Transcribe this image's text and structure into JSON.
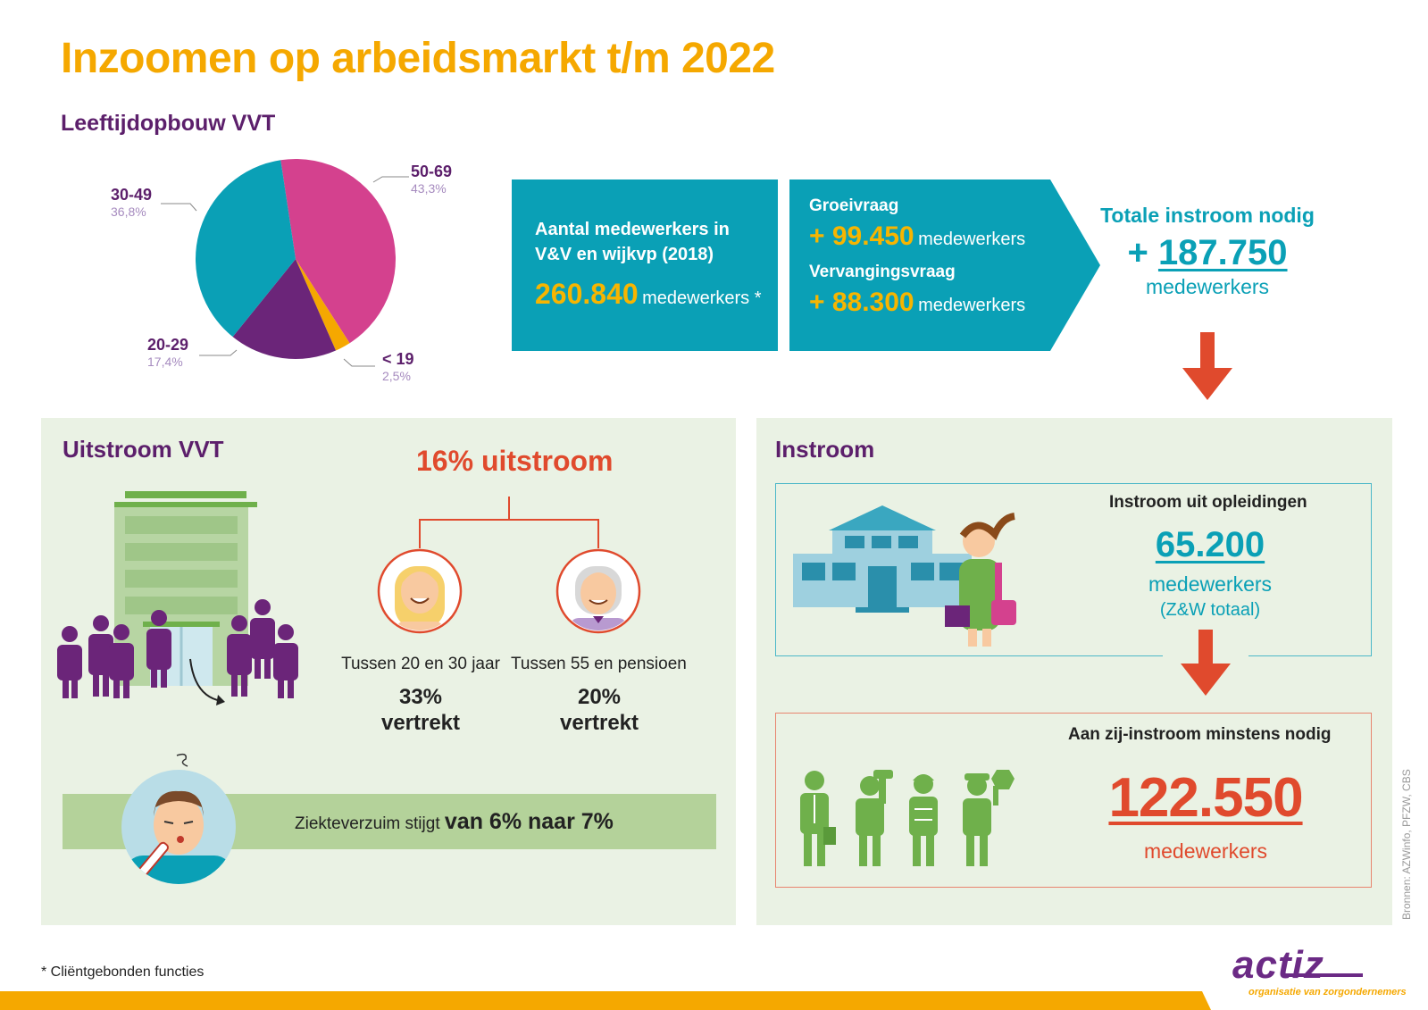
{
  "title": "Inzoomen op arbeidsmarkt t/m 2022",
  "age_section": {
    "title": "Leeftijdopbouw VVT",
    "slices": [
      {
        "label": "50-69",
        "pct": "43,3%",
        "value": 43.3,
        "color": "#d4418e"
      },
      {
        "label": "< 19",
        "pct": "2,5%",
        "value": 2.5,
        "color": "#f5a800"
      },
      {
        "label": "20-29",
        "pct": "17,4%",
        "value": 17.4,
        "color": "#6b2579"
      },
      {
        "label": "30-49",
        "pct": "36,8%",
        "value": 36.8,
        "color": "#0aa0b6"
      }
    ]
  },
  "employees": {
    "heading": "Aantal medewerkers in V&V en wijkvp (2018)",
    "number": "260.840",
    "unit": "medewerkers *"
  },
  "demand": {
    "growth_label": "Groeivraag",
    "growth_value": "+ 99.450",
    "growth_unit": "medewerkers",
    "replace_label": "Vervangingsvraag",
    "replace_value": "+ 88.300",
    "replace_unit": "medewerkers"
  },
  "total": {
    "heading": "Totale instroom nodig",
    "plus": "+",
    "number": "187.750",
    "unit": "medewerkers"
  },
  "outflow": {
    "title": "Uitstroom VVT",
    "headline": "16% uitstroom",
    "young_label": "Tussen 20 en 30 jaar",
    "young_pct": "33%",
    "young_word": "vertrekt",
    "old_label": "Tussen 55 en pensioen",
    "old_pct": "20%",
    "old_word": "vertrekt",
    "sick_text": "Ziekteverzuim stijgt",
    "sick_bold": "van 6% naar 7%"
  },
  "inflow": {
    "title": "Instroom",
    "edu_heading": "Instroom uit opleidingen",
    "edu_number": "65.200",
    "edu_unit": "medewerkers",
    "edu_sub": "(Z&W totaal)",
    "side_heading": "Aan zij-instroom minstens nodig",
    "side_number": "122.550",
    "side_unit": "medewerkers"
  },
  "footnote": "* Cliëntgebonden functies",
  "sources": "Bronnen: AZWinfo, PFZW, CBS",
  "logo": "actiz",
  "logo_tagline": "organisatie van zorgondernemers",
  "colors": {
    "accent_yellow": "#f5a800",
    "purple": "#5c1f6b",
    "teal": "#0aa0b6",
    "red": "#e04a2d",
    "green": "#6fb04b",
    "panel_bg": "#eaf2e4"
  }
}
